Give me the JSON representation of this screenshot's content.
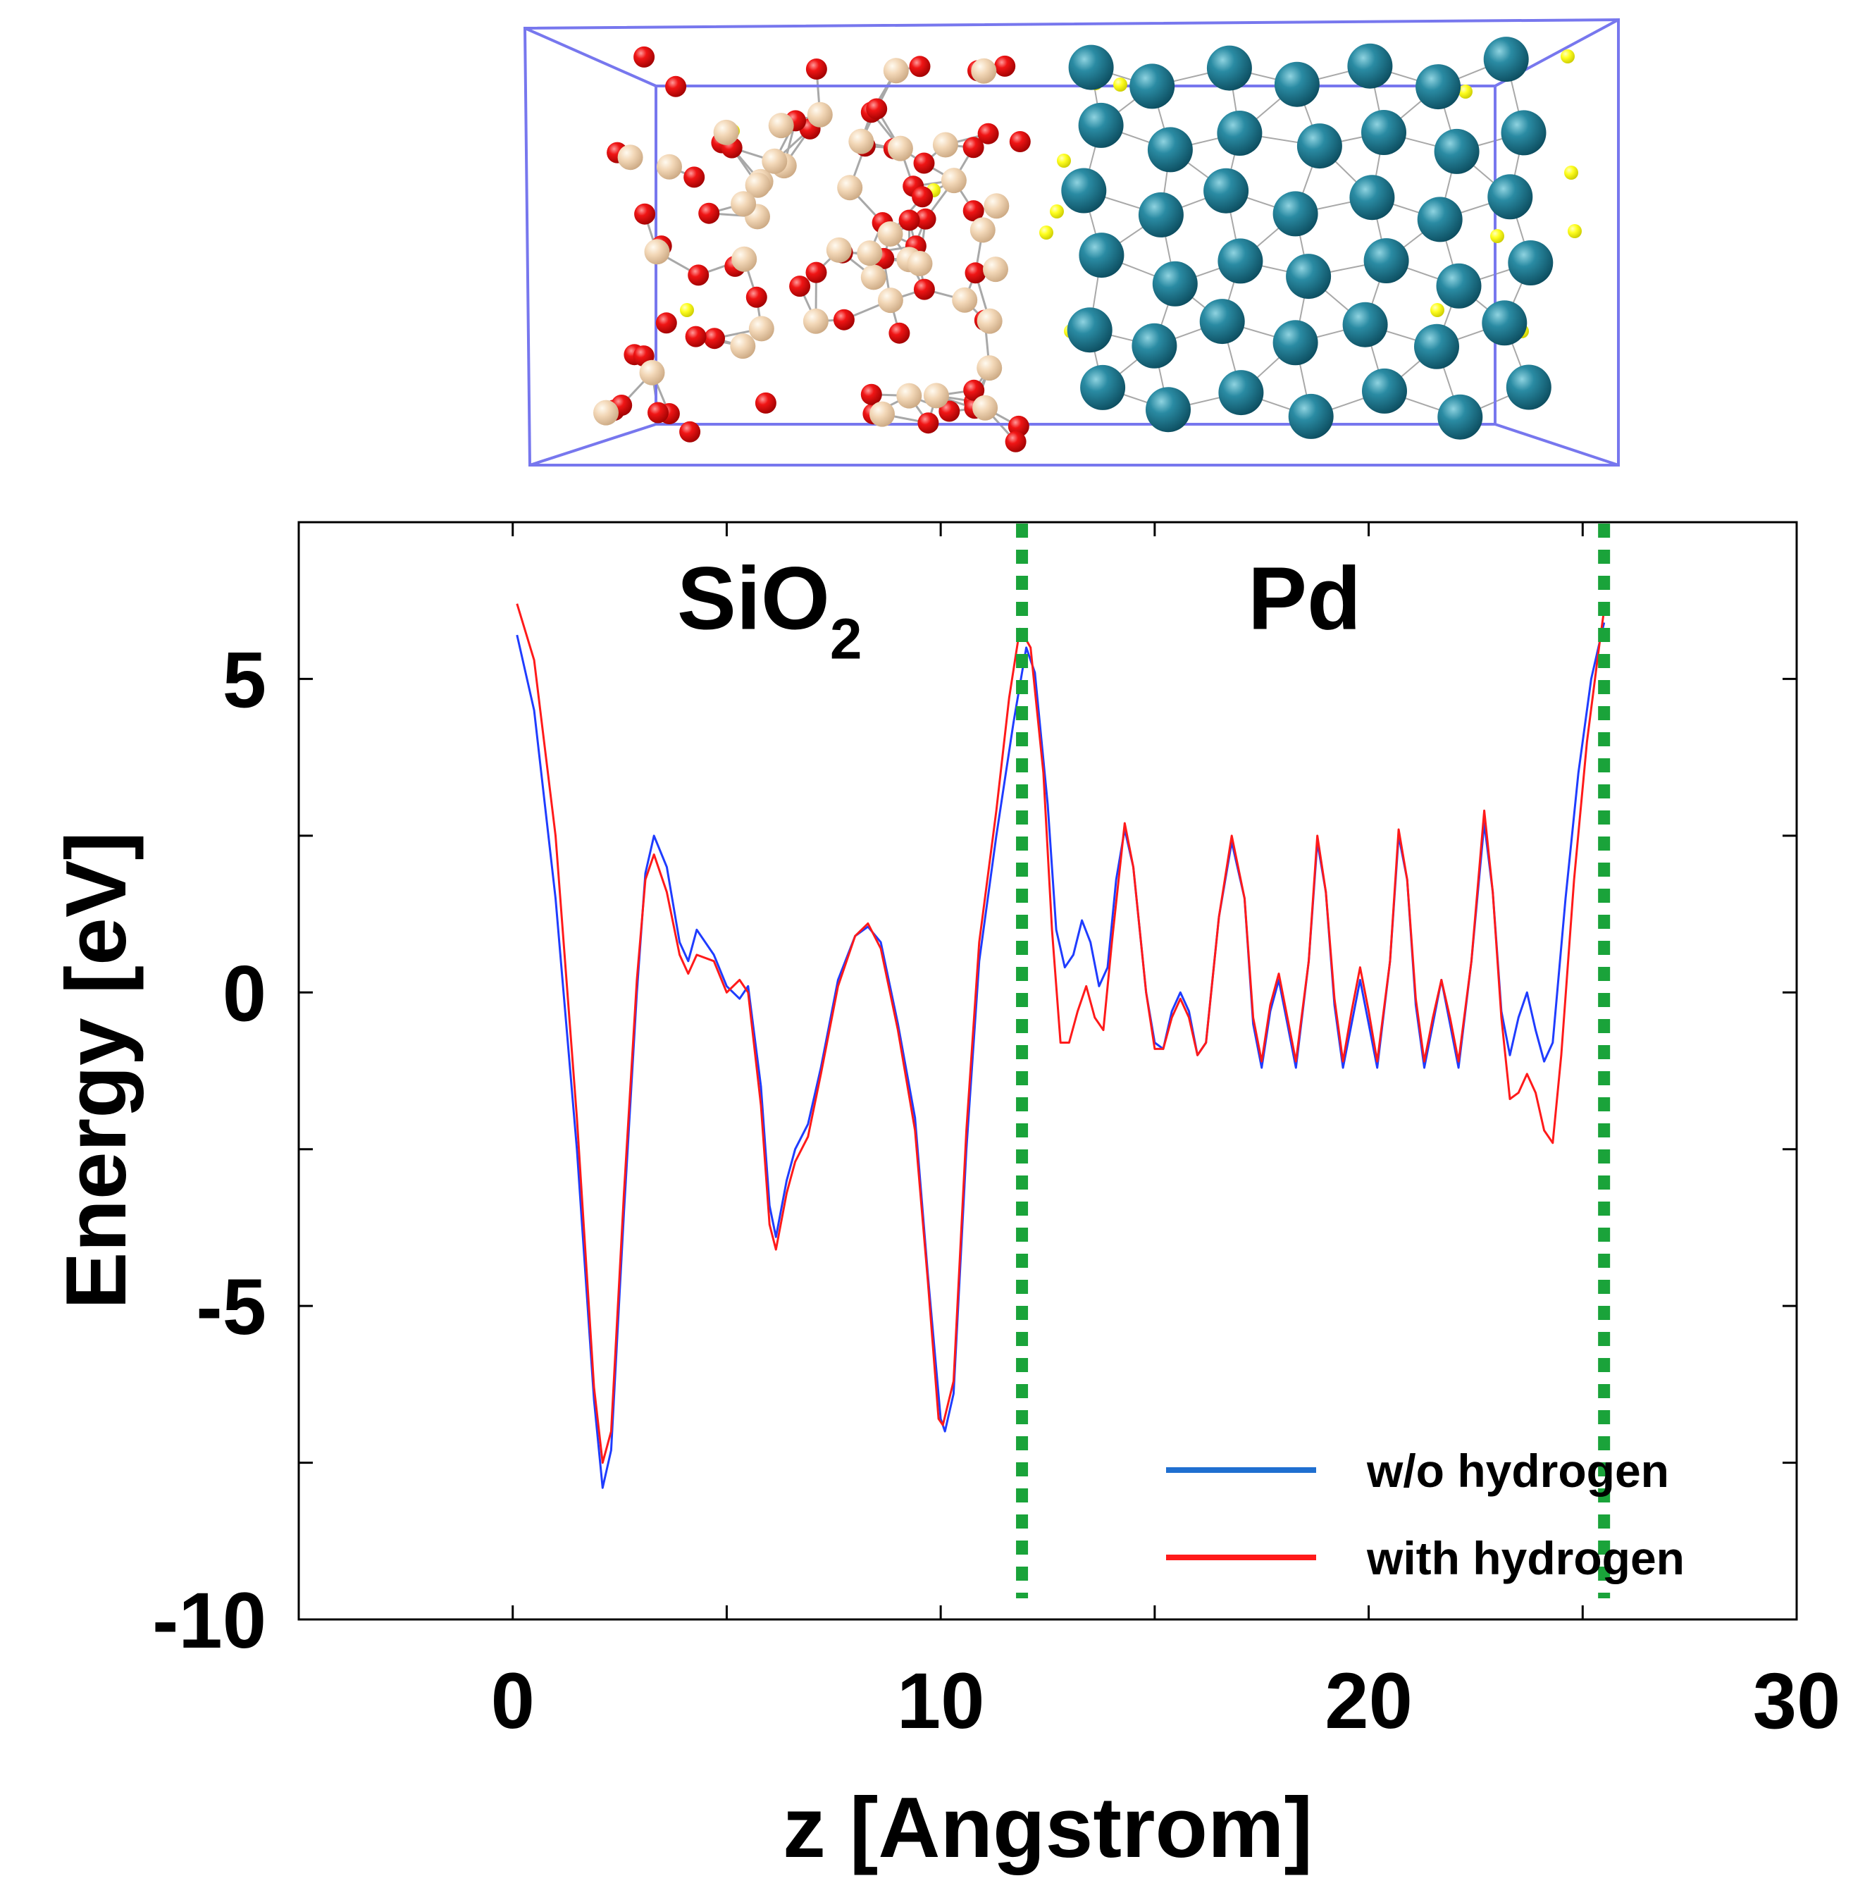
{
  "chart_data": {
    "type": "line",
    "title": "",
    "xlabel": "z [Angstrom]",
    "ylabel": "Energy [eV]",
    "xlim": [
      -5,
      30
    ],
    "ylim": [
      -10,
      7.5
    ],
    "xticks": [
      0,
      10,
      20,
      30
    ],
    "yticks": [
      5,
      0,
      -5,
      -10
    ],
    "xtick_labels": [
      "0",
      "10",
      "20",
      "30"
    ],
    "ytick_labels": [
      "5",
      "0",
      "-5",
      "-10"
    ],
    "region_labels": [
      {
        "text": "SiO",
        "subscript": "2",
        "x": 6.0,
        "y": 5.8
      },
      {
        "text": "Pd",
        "subscript": "",
        "x": 18.5,
        "y": 5.8
      }
    ],
    "interfaces": [
      {
        "x": 11.9,
        "color": "#1aa33a"
      },
      {
        "x": 25.5,
        "color": "#1aa33a"
      }
    ],
    "legend_position": "bottom-right",
    "series": [
      {
        "name": "w/o hydrogen",
        "color": "#1f3cff",
        "legend_color": "#1f6fd0",
        "points": [
          [
            0.1,
            5.7
          ],
          [
            0.5,
            4.5
          ],
          [
            1.0,
            1.5
          ],
          [
            1.5,
            -2.5
          ],
          [
            1.9,
            -6.5
          ],
          [
            2.1,
            -7.9
          ],
          [
            2.3,
            -7.3
          ],
          [
            2.6,
            -3.5
          ],
          [
            2.9,
            0.0
          ],
          [
            3.1,
            1.9
          ],
          [
            3.3,
            2.5
          ],
          [
            3.6,
            2.0
          ],
          [
            3.9,
            0.8
          ],
          [
            4.1,
            0.5
          ],
          [
            4.3,
            1.0
          ],
          [
            4.7,
            0.6
          ],
          [
            5.0,
            0.1
          ],
          [
            5.3,
            -0.1
          ],
          [
            5.5,
            0.1
          ],
          [
            5.8,
            -1.5
          ],
          [
            6.0,
            -3.4
          ],
          [
            6.15,
            -3.9
          ],
          [
            6.4,
            -3.0
          ],
          [
            6.6,
            -2.5
          ],
          [
            6.9,
            -2.1
          ],
          [
            7.2,
            -1.2
          ],
          [
            7.6,
            0.2
          ],
          [
            8.0,
            0.9
          ],
          [
            8.3,
            1.05
          ],
          [
            8.6,
            0.8
          ],
          [
            9.0,
            -0.5
          ],
          [
            9.4,
            -2.0
          ],
          [
            9.7,
            -4.5
          ],
          [
            10.0,
            -6.8
          ],
          [
            10.1,
            -7.0
          ],
          [
            10.3,
            -6.4
          ],
          [
            10.6,
            -2.5
          ],
          [
            10.9,
            0.5
          ],
          [
            11.3,
            2.5
          ],
          [
            11.7,
            4.3
          ],
          [
            12.0,
            5.5
          ],
          [
            12.2,
            5.1
          ],
          [
            12.5,
            3.0
          ],
          [
            12.7,
            1.0
          ],
          [
            12.9,
            0.4
          ],
          [
            13.1,
            0.6
          ],
          [
            13.3,
            1.15
          ],
          [
            13.5,
            0.8
          ],
          [
            13.7,
            0.1
          ],
          [
            13.9,
            0.4
          ],
          [
            14.1,
            1.8
          ],
          [
            14.3,
            2.6
          ],
          [
            14.5,
            2.0
          ],
          [
            14.8,
            0.0
          ],
          [
            15.0,
            -0.8
          ],
          [
            15.2,
            -0.9
          ],
          [
            15.4,
            -0.3
          ],
          [
            15.6,
            0.0
          ],
          [
            15.8,
            -0.3
          ],
          [
            16.0,
            -1.0
          ],
          [
            16.2,
            -0.8
          ],
          [
            16.5,
            1.2
          ],
          [
            16.8,
            2.4
          ],
          [
            17.1,
            1.5
          ],
          [
            17.3,
            -0.5
          ],
          [
            17.5,
            -1.2
          ],
          [
            17.7,
            -0.3
          ],
          [
            17.9,
            0.2
          ],
          [
            18.1,
            -0.5
          ],
          [
            18.3,
            -1.2
          ],
          [
            18.6,
            0.5
          ],
          [
            18.8,
            2.4
          ],
          [
            19.0,
            1.6
          ],
          [
            19.2,
            -0.2
          ],
          [
            19.4,
            -1.2
          ],
          [
            19.6,
            -0.5
          ],
          [
            19.8,
            0.2
          ],
          [
            20.0,
            -0.5
          ],
          [
            20.2,
            -1.2
          ],
          [
            20.5,
            0.5
          ],
          [
            20.7,
            2.5
          ],
          [
            20.9,
            1.8
          ],
          [
            21.1,
            -0.2
          ],
          [
            21.3,
            -1.2
          ],
          [
            21.5,
            -0.5
          ],
          [
            21.7,
            0.2
          ],
          [
            21.9,
            -0.5
          ],
          [
            22.1,
            -1.2
          ],
          [
            22.4,
            0.5
          ],
          [
            22.7,
            2.7
          ],
          [
            22.9,
            1.6
          ],
          [
            23.1,
            -0.3
          ],
          [
            23.3,
            -1.0
          ],
          [
            23.5,
            -0.4
          ],
          [
            23.7,
            0.0
          ],
          [
            23.9,
            -0.6
          ],
          [
            24.1,
            -1.1
          ],
          [
            24.3,
            -0.8
          ],
          [
            24.6,
            1.5
          ],
          [
            24.9,
            3.5
          ],
          [
            25.2,
            5.0
          ],
          [
            25.5,
            5.9
          ]
        ]
      },
      {
        "name": "with hydrogen",
        "color": "#ff1a1a",
        "legend_color": "#ff1a1a",
        "points": [
          [
            0.1,
            6.2
          ],
          [
            0.5,
            5.3
          ],
          [
            1.0,
            2.5
          ],
          [
            1.5,
            -2.0
          ],
          [
            1.9,
            -6.3
          ],
          [
            2.1,
            -7.5
          ],
          [
            2.3,
            -7.0
          ],
          [
            2.6,
            -3.2
          ],
          [
            2.9,
            0.2
          ],
          [
            3.1,
            1.8
          ],
          [
            3.3,
            2.2
          ],
          [
            3.6,
            1.6
          ],
          [
            3.9,
            0.6
          ],
          [
            4.1,
            0.3
          ],
          [
            4.3,
            0.6
          ],
          [
            4.7,
            0.5
          ],
          [
            5.0,
            0.0
          ],
          [
            5.3,
            0.2
          ],
          [
            5.5,
            0.0
          ],
          [
            5.8,
            -1.8
          ],
          [
            6.0,
            -3.7
          ],
          [
            6.15,
            -4.1
          ],
          [
            6.4,
            -3.2
          ],
          [
            6.6,
            -2.7
          ],
          [
            6.9,
            -2.3
          ],
          [
            7.2,
            -1.3
          ],
          [
            7.6,
            0.1
          ],
          [
            8.0,
            0.9
          ],
          [
            8.3,
            1.1
          ],
          [
            8.6,
            0.7
          ],
          [
            9.0,
            -0.6
          ],
          [
            9.4,
            -2.2
          ],
          [
            9.7,
            -4.6
          ],
          [
            9.95,
            -6.8
          ],
          [
            10.05,
            -6.9
          ],
          [
            10.3,
            -6.2
          ],
          [
            10.6,
            -2.2
          ],
          [
            10.9,
            0.8
          ],
          [
            11.3,
            2.9
          ],
          [
            11.6,
            4.7
          ],
          [
            11.85,
            5.8
          ],
          [
            12.1,
            5.5
          ],
          [
            12.4,
            3.5
          ],
          [
            12.6,
            1.0
          ],
          [
            12.8,
            -0.8
          ],
          [
            13.0,
            -0.8
          ],
          [
            13.2,
            -0.3
          ],
          [
            13.4,
            0.1
          ],
          [
            13.6,
            -0.4
          ],
          [
            13.8,
            -0.6
          ],
          [
            14.0,
            0.8
          ],
          [
            14.3,
            2.7
          ],
          [
            14.5,
            2.0
          ],
          [
            14.8,
            0.0
          ],
          [
            15.0,
            -0.9
          ],
          [
            15.2,
            -0.9
          ],
          [
            15.4,
            -0.4
          ],
          [
            15.6,
            -0.1
          ],
          [
            15.8,
            -0.4
          ],
          [
            16.0,
            -1.0
          ],
          [
            16.2,
            -0.8
          ],
          [
            16.5,
            1.2
          ],
          [
            16.8,
            2.5
          ],
          [
            17.1,
            1.5
          ],
          [
            17.3,
            -0.4
          ],
          [
            17.5,
            -1.1
          ],
          [
            17.7,
            -0.2
          ],
          [
            17.9,
            0.3
          ],
          [
            18.1,
            -0.4
          ],
          [
            18.3,
            -1.1
          ],
          [
            18.6,
            0.5
          ],
          [
            18.8,
            2.5
          ],
          [
            19.0,
            1.6
          ],
          [
            19.2,
            -0.1
          ],
          [
            19.4,
            -1.1
          ],
          [
            19.6,
            -0.3
          ],
          [
            19.8,
            0.4
          ],
          [
            20.0,
            -0.3
          ],
          [
            20.2,
            -1.1
          ],
          [
            20.5,
            0.5
          ],
          [
            20.7,
            2.6
          ],
          [
            20.9,
            1.8
          ],
          [
            21.1,
            -0.1
          ],
          [
            21.3,
            -1.1
          ],
          [
            21.5,
            -0.4
          ],
          [
            21.7,
            0.2
          ],
          [
            21.9,
            -0.4
          ],
          [
            22.1,
            -1.1
          ],
          [
            22.4,
            0.5
          ],
          [
            22.7,
            2.9
          ],
          [
            22.9,
            1.6
          ],
          [
            23.1,
            -0.4
          ],
          [
            23.3,
            -1.7
          ],
          [
            23.5,
            -1.6
          ],
          [
            23.7,
            -1.3
          ],
          [
            23.9,
            -1.6
          ],
          [
            24.1,
            -2.2
          ],
          [
            24.3,
            -2.4
          ],
          [
            24.5,
            -1.0
          ],
          [
            24.8,
            1.8
          ],
          [
            25.1,
            4.0
          ],
          [
            25.4,
            5.6
          ],
          [
            25.5,
            6.1
          ]
        ]
      }
    ]
  },
  "structure": {
    "materials": [
      "SiO2",
      "Pd"
    ],
    "atom_colors": {
      "si": "#f2d6b3",
      "o": "#ee1111",
      "h": "#ffff1e",
      "pd": "#1a7a90",
      "cell": "#7777ee",
      "bond": "#a8a8a8"
    }
  }
}
